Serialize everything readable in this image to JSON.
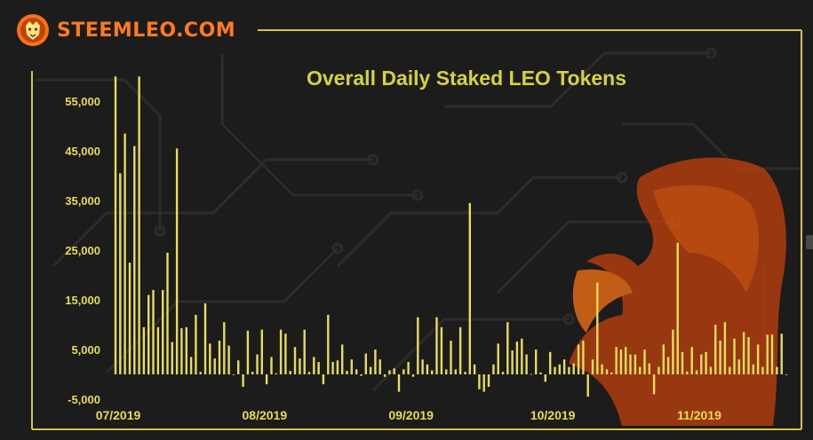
{
  "brand": {
    "name": "STEEMLEO.COM",
    "logo_icon": "lion-head-icon",
    "watermark_icon": "lion-watermark-icon",
    "color": "#ff7a1a"
  },
  "colors": {
    "background": "#1c1c1c",
    "bars": "#e8dc5a",
    "title": "#d7d23a",
    "frame": "#d9c24a",
    "axis_text": "#e6dc52"
  },
  "chart_data": {
    "type": "bar",
    "title": "Overall Daily Staked LEO Tokens",
    "xlabel": "",
    "ylabel": "",
    "ylim": [
      -5000,
      62000
    ],
    "yticks": [
      -5000,
      5000,
      15000,
      25000,
      35000,
      45000,
      55000
    ],
    "ytick_labels": [
      "-5,000",
      "5,000",
      "15,000",
      "25,000",
      "35,000",
      "45,000",
      "55,000"
    ],
    "x_start": "2019-07-01",
    "x_end": "2019-11-20",
    "xticks": [
      "2019-07-01",
      "2019-08-01",
      "2019-09-01",
      "2019-10-01",
      "2019-11-01"
    ],
    "xtick_labels": [
      "07/2019",
      "08/2019",
      "09/2019",
      "10/2019",
      "11/2019"
    ],
    "grid": false,
    "legend": "none",
    "dates": [
      "2019-07-01",
      "2019-07-02",
      "2019-07-03",
      "2019-07-04",
      "2019-07-05",
      "2019-07-06",
      "2019-07-07",
      "2019-07-08",
      "2019-07-09",
      "2019-07-10",
      "2019-07-11",
      "2019-07-12",
      "2019-07-13",
      "2019-07-14",
      "2019-07-15",
      "2019-07-16",
      "2019-07-17",
      "2019-07-18",
      "2019-07-19",
      "2019-07-20",
      "2019-07-21",
      "2019-07-22",
      "2019-07-23",
      "2019-07-24",
      "2019-07-25",
      "2019-07-26",
      "2019-07-27",
      "2019-07-28",
      "2019-07-29",
      "2019-07-30",
      "2019-07-31",
      "2019-08-01",
      "2019-08-02",
      "2019-08-03",
      "2019-08-04",
      "2019-08-05",
      "2019-08-06",
      "2019-08-07",
      "2019-08-08",
      "2019-08-09",
      "2019-08-10",
      "2019-08-11",
      "2019-08-12",
      "2019-08-13",
      "2019-08-14",
      "2019-08-15",
      "2019-08-16",
      "2019-08-17",
      "2019-08-18",
      "2019-08-19",
      "2019-08-20",
      "2019-08-21",
      "2019-08-22",
      "2019-08-23",
      "2019-08-24",
      "2019-08-25",
      "2019-08-26",
      "2019-08-27",
      "2019-08-28",
      "2019-08-29",
      "2019-08-30",
      "2019-08-31",
      "2019-09-01",
      "2019-09-02",
      "2019-09-03",
      "2019-09-04",
      "2019-09-05",
      "2019-09-06",
      "2019-09-07",
      "2019-09-08",
      "2019-09-09",
      "2019-09-10",
      "2019-09-11",
      "2019-09-12",
      "2019-09-13",
      "2019-09-14",
      "2019-09-15",
      "2019-09-16",
      "2019-09-17",
      "2019-09-18",
      "2019-09-19",
      "2019-09-20",
      "2019-09-21",
      "2019-09-22",
      "2019-09-23",
      "2019-09-24",
      "2019-09-25",
      "2019-09-26",
      "2019-09-27",
      "2019-09-28",
      "2019-09-29",
      "2019-09-30",
      "2019-10-01",
      "2019-10-02",
      "2019-10-03",
      "2019-10-04",
      "2019-10-05",
      "2019-10-06",
      "2019-10-07",
      "2019-10-08",
      "2019-10-09",
      "2019-10-10",
      "2019-10-11",
      "2019-10-12",
      "2019-10-13",
      "2019-10-14",
      "2019-10-15",
      "2019-10-16",
      "2019-10-17",
      "2019-10-18",
      "2019-10-19",
      "2019-10-20",
      "2019-10-21",
      "2019-10-22",
      "2019-10-23",
      "2019-10-24",
      "2019-10-25",
      "2019-10-26",
      "2019-10-27",
      "2019-10-28",
      "2019-10-29",
      "2019-10-30",
      "2019-10-31",
      "2019-11-01",
      "2019-11-02",
      "2019-11-03",
      "2019-11-04",
      "2019-11-05",
      "2019-11-06",
      "2019-11-07",
      "2019-11-08",
      "2019-11-09",
      "2019-11-10",
      "2019-11-11",
      "2019-11-12",
      "2019-11-13",
      "2019-11-14",
      "2019-11-15",
      "2019-11-16",
      "2019-11-17",
      "2019-11-18",
      "2019-11-19",
      "2019-11-20"
    ],
    "values": [
      60000,
      40500,
      48500,
      22500,
      46000,
      60000,
      9500,
      16000,
      17000,
      9500,
      17000,
      24500,
      6500,
      45500,
      9300,
      9500,
      3500,
      12000,
      500,
      14300,
      6200,
      3200,
      6800,
      10500,
      5800,
      0,
      2800,
      -2500,
      8800,
      500,
      4000,
      9000,
      -2000,
      3500,
      200,
      9000,
      8200,
      700,
      5500,
      3200,
      9000,
      500,
      3500,
      2500,
      -2000,
      12000,
      2500,
      2800,
      6000,
      700,
      3000,
      1000,
      -300,
      4200,
      1500,
      5000,
      3000,
      -500,
      800,
      1200,
      -3500,
      1000,
      2500,
      -500,
      11500,
      3000,
      2000,
      800,
      11500,
      9500,
      1000,
      6800,
      1000,
      9500,
      500,
      34500,
      2000,
      -3000,
      -3500,
      -2500,
      2000,
      6200,
      500,
      10500,
      4800,
      6600,
      7200,
      4000,
      100,
      5000,
      400,
      -1500,
      4500,
      1500,
      2000,
      3000,
      1500,
      2200,
      6000,
      6800,
      -4500,
      3000,
      18500,
      2000,
      1000,
      400,
      5500,
      5000,
      5500,
      4000,
      4000,
      1500,
      5000,
      2200,
      -4000,
      1500,
      6000,
      3500,
      9000,
      26500,
      4500,
      600,
      5500,
      800,
      4000,
      4500,
      1500,
      10000,
      6800,
      10500,
      1500,
      7200,
      3000,
      8500,
      7500,
      2000,
      6000,
      1500,
      8000,
      8000,
      1500,
      8200,
      0
    ]
  }
}
